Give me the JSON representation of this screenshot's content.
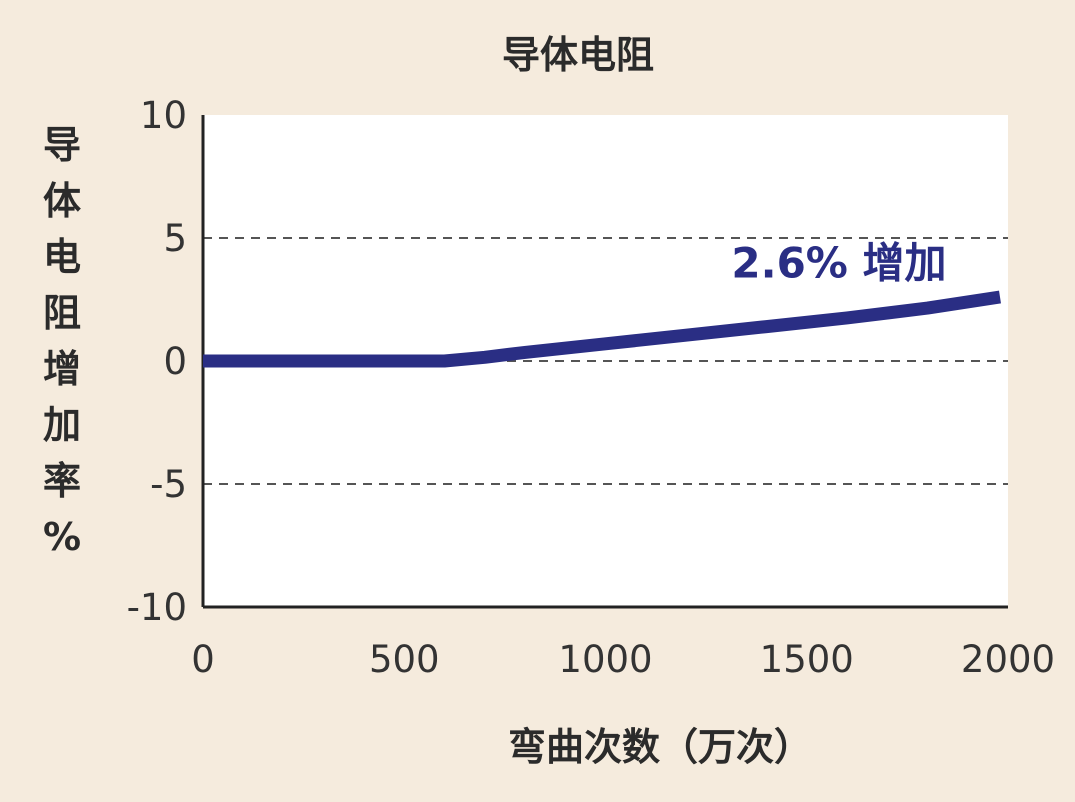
{
  "chart_data": {
    "type": "line",
    "title": "导体电阻",
    "xlabel": "弯曲次数（万次）",
    "ylabel": "导体电阻增加率%",
    "xlim": [
      0,
      2000
    ],
    "ylim": [
      -10,
      10
    ],
    "x_ticks": [
      0,
      500,
      1000,
      1500,
      2000
    ],
    "y_ticks": [
      10,
      5,
      0,
      -5,
      -10
    ],
    "grid": "horizontal-dashed",
    "series": [
      {
        "color": "#2a2e84",
        "x": [
          0,
          300,
          600,
          700,
          800,
          1000,
          1200,
          1400,
          1600,
          1800,
          1980
        ],
        "y": [
          0,
          0,
          0,
          0.15,
          0.35,
          0.7,
          1.05,
          1.4,
          1.75,
          2.15,
          2.6
        ]
      }
    ],
    "annotations": [
      {
        "text": "2.6% 增加",
        "x": 1580,
        "y": 3.4,
        "color": "#2a2e84"
      }
    ]
  }
}
